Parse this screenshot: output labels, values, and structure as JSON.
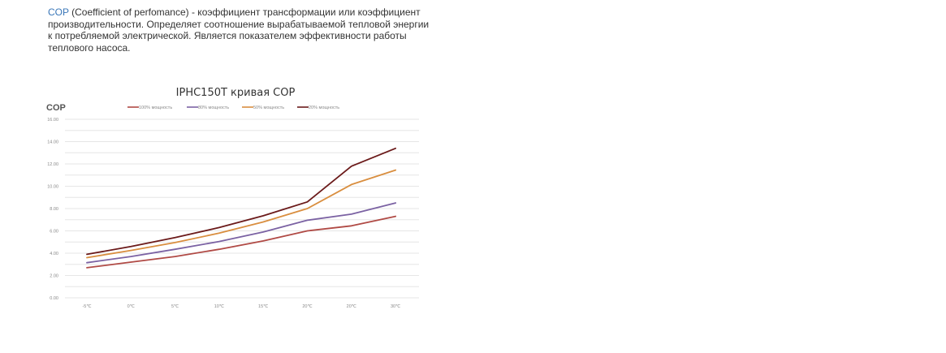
{
  "description": {
    "term": "COP",
    "text": " (Coefficient of perfomance) - коэффициент трансформации или коэффициент производительности. Определяет соотношение вырабатываемой тепловой энергии к потребляемой электрической. Является показателем эффективности работы теплового насоса."
  },
  "chart_data": {
    "type": "line",
    "title": "IPHC150T   кривая  COP",
    "ylabel": "COP",
    "xlabel": "",
    "categories": [
      "-5℃",
      "0℃",
      "5℃",
      "10℃",
      "15℃",
      "20℃",
      "20℃",
      "30℃"
    ],
    "ylim": [
      0,
      16
    ],
    "yticks": [
      "0.00",
      "2.00",
      "4.00",
      "6.00",
      "8.00",
      "10.00",
      "12.00",
      "14.00",
      "16.00"
    ],
    "grid": true,
    "legend_position": "top",
    "series": [
      {
        "name": "100% мощность",
        "color": "#b04a45",
        "values": [
          2.7,
          3.2,
          3.7,
          4.35,
          5.1,
          6.0,
          6.45,
          7.3
        ]
      },
      {
        "name": "80% мощность",
        "color": "#7b62a3",
        "values": [
          3.15,
          3.7,
          4.35,
          5.05,
          5.9,
          6.95,
          7.5,
          8.5
        ]
      },
      {
        "name": "50% мощность",
        "color": "#d98e3f",
        "values": [
          3.6,
          4.25,
          4.95,
          5.8,
          6.8,
          8.0,
          10.15,
          11.45
        ]
      },
      {
        "name": "20% мощность",
        "color": "#6b1a1a",
        "values": [
          3.9,
          4.6,
          5.4,
          6.3,
          7.35,
          8.6,
          11.8,
          13.4
        ]
      }
    ]
  }
}
